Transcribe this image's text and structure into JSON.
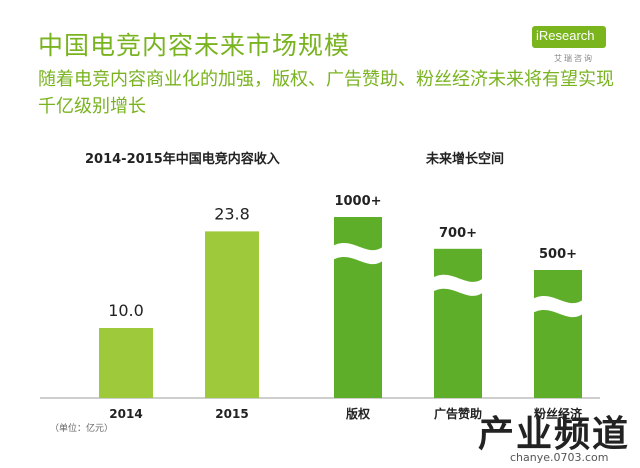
{
  "header": {
    "title": "中国电竞内容未来市场规模",
    "subtitle": "随着电竞内容商业化的加强，版权、广告赞助、粉丝经济未来将有望实现千亿级别增长"
  },
  "logo": {
    "text": "iResearch",
    "subtext": "艾瑞咨询"
  },
  "unit_note": "（单位：亿元）",
  "watermark": {
    "text": "产业频道",
    "url": "chanye.0703.com"
  },
  "colors": {
    "title": "#79b320",
    "bar_light": "#9dc93a",
    "bar_dark": "#5fae2a"
  },
  "chart_data": [
    {
      "type": "bar",
      "title": "2014-2015年中国电竞内容收入",
      "categories": [
        "2014",
        "2015"
      ],
      "values": [
        10.0,
        23.8
      ],
      "labels": [
        "10.0",
        "23.8"
      ],
      "ylim": [
        0,
        30
      ],
      "grid": false
    },
    {
      "type": "bar",
      "title": "未来增长空间",
      "categories": [
        "版权",
        "广告赞助",
        "粉丝经济"
      ],
      "values": [
        1000,
        700,
        500
      ],
      "labels": [
        "1000+",
        "700+",
        "500+"
      ],
      "axis_break": true,
      "grid": false
    }
  ]
}
